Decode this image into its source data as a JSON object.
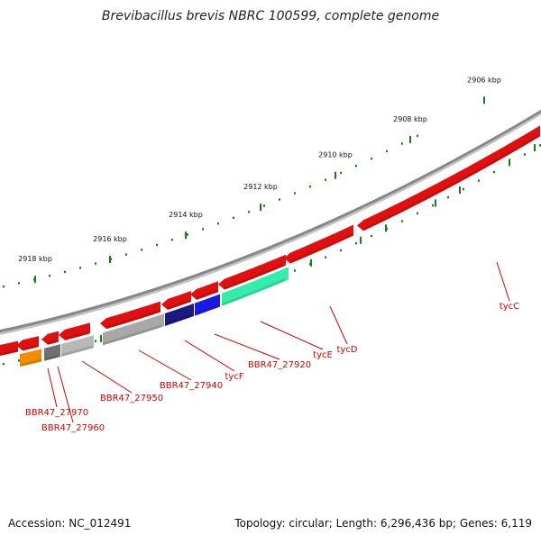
{
  "title": "Brevibacillus brevis NBRC 100599, complete genome",
  "footer": {
    "accession": "Accession: NC_012491",
    "summary": "Topology: circular; Length: 6,296,436 bp; Genes: 6,119"
  },
  "ticks": [
    "2906 kbp",
    "2908 kbp",
    "2910 kbp",
    "2912 kbp",
    "2914 kbp",
    "2916 kbp",
    "2918 kbp"
  ],
  "genes": [
    "tycC",
    "tycD",
    "tycE",
    "BBR47_27920",
    "tycF",
    "BBR47_27940",
    "BBR47_27950",
    "BBR47_27960",
    "BBR47_27970"
  ],
  "colors": {
    "forward": "#e01010",
    "backbone": "#888888",
    "tick": "#1a7a1a",
    "label": "#cc0000",
    "navy": "#1a1a80",
    "blue": "#1a1ae0",
    "green": "#33eeaa",
    "gray": "#a8a8a8",
    "dark_gray": "#707070",
    "orange": "#f08c00"
  }
}
